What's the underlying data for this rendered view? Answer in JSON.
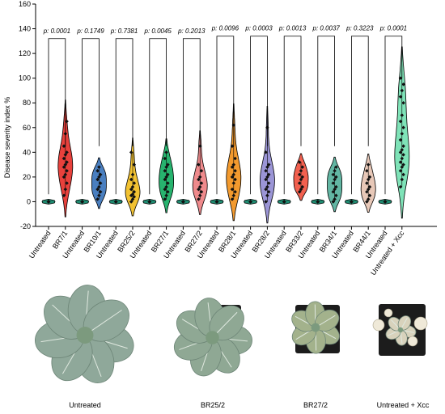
{
  "chart_data": {
    "type": "violin",
    "ylabel": "Disease severity index %",
    "ylim": [
      -20,
      160
    ],
    "yticks": [
      -20,
      0,
      20,
      40,
      60,
      80,
      100,
      120,
      140,
      160
    ],
    "categories": [
      "Untreated",
      "BR7/1",
      "Untreated",
      "BR10/1",
      "Untreated",
      "BR25/2",
      "Untreated",
      "BR27/1",
      "Untreated",
      "BR27/2",
      "Untreated",
      "BR28/1",
      "Untreated",
      "BR28/2",
      "Untreated",
      "BR33/2",
      "Untreated",
      "BR34/1",
      "Untreated",
      "BR44/1",
      "Untreated",
      "Untreated + Xcc"
    ],
    "series": [
      {
        "values": [
          0,
          0,
          0,
          0,
          0,
          0
        ],
        "color": "#1f8a70"
      },
      {
        "values": [
          5,
          10,
          15,
          20,
          22,
          25,
          28,
          30,
          32,
          35,
          38,
          40,
          45,
          55,
          65
        ],
        "color": "#e8413c"
      },
      {
        "values": [
          0,
          0,
          0,
          0,
          0,
          0
        ],
        "color": "#1f8a70"
      },
      {
        "values": [
          2,
          5,
          8,
          10,
          12,
          15,
          18,
          20,
          22,
          25,
          28
        ],
        "color": "#4a7fc0"
      },
      {
        "values": [
          0,
          0,
          0,
          0,
          0,
          0
        ],
        "color": "#1f8a70"
      },
      {
        "values": [
          0,
          2,
          4,
          5,
          6,
          8,
          10,
          12,
          15,
          18,
          22,
          30,
          40
        ],
        "color": "#f2c232"
      },
      {
        "values": [
          0,
          0,
          0,
          0,
          0,
          0
        ],
        "color": "#1f8a70"
      },
      {
        "values": [
          2,
          5,
          8,
          10,
          12,
          15,
          18,
          20,
          22,
          25,
          28,
          30,
          35,
          40
        ],
        "color": "#27b36e"
      },
      {
        "values": [
          0,
          0,
          0,
          0,
          0,
          0
        ],
        "color": "#1f8a70"
      },
      {
        "values": [
          2,
          5,
          8,
          10,
          12,
          15,
          18,
          20,
          25,
          30,
          45
        ],
        "color": "#ef8a8c"
      },
      {
        "values": [
          0,
          0,
          0,
          0,
          0,
          0
        ],
        "color": "#1f8a70"
      },
      {
        "values": [
          2,
          5,
          8,
          10,
          15,
          18,
          20,
          22,
          25,
          28,
          30,
          35,
          45,
          62
        ],
        "color": "#f39a2e"
      },
      {
        "values": [
          0,
          0,
          0,
          0,
          0,
          0
        ],
        "color": "#1f8a70"
      },
      {
        "values": [
          0,
          5,
          8,
          10,
          12,
          15,
          18,
          20,
          22,
          25,
          28,
          30,
          40,
          60
        ],
        "color": "#9b95d6"
      },
      {
        "values": [
          0,
          0,
          0,
          0,
          0,
          0
        ],
        "color": "#1f8a70"
      },
      {
        "values": [
          8,
          10,
          12,
          15,
          18,
          20,
          22,
          25,
          28,
          32
        ],
        "color": "#f2604f"
      },
      {
        "values": [
          0,
          0,
          0,
          0,
          0,
          0
        ],
        "color": "#1f8a70"
      },
      {
        "values": [
          0,
          2,
          5,
          8,
          10,
          12,
          15,
          18,
          20,
          22,
          25,
          28
        ],
        "color": "#62b6a3"
      },
      {
        "values": [
          0,
          0,
          0,
          0,
          0,
          0
        ],
        "color": "#1f8a70"
      },
      {
        "values": [
          0,
          2,
          5,
          8,
          10,
          12,
          15,
          18,
          20,
          25,
          30
        ],
        "color": "#e8c8b8"
      },
      {
        "values": [
          0,
          0,
          0,
          0,
          0,
          0
        ],
        "color": "#1f8a70"
      },
      {
        "values": [
          12,
          18,
          22,
          25,
          28,
          30,
          32,
          35,
          38,
          40,
          42,
          45,
          50,
          55,
          60,
          65,
          70,
          80,
          85,
          90,
          95,
          100
        ],
        "color": "#7fe3b8"
      }
    ],
    "comparisons": [
      {
        "label": "p: 0.0001",
        "y": 132
      },
      {
        "label": "p: 0.1749",
        "y": 132
      },
      {
        "label": "p: 0.7381",
        "y": 132
      },
      {
        "label": "p: 0.0045",
        "y": 132
      },
      {
        "label": "p: 0.2013",
        "y": 132
      },
      {
        "label": "p: 0.0096",
        "y": 134
      },
      {
        "label": "p: 0.0003",
        "y": 134
      },
      {
        "label": "p: 0.0013",
        "y": 134
      },
      {
        "label": "p: 0.0037",
        "y": 134
      },
      {
        "label": "p: 0.3223",
        "y": 134
      },
      {
        "label": "p: 0.0001",
        "y": 134
      }
    ]
  },
  "photos": [
    {
      "caption": "Untreated",
      "leaf_color": "#8fa89a"
    },
    {
      "caption": "BR25/2",
      "leaf_color": "#8fa894"
    },
    {
      "caption": "BR27/2",
      "leaf_color": "#a3b28c"
    },
    {
      "caption": "Untreated + Xcc",
      "leaf_color": "#d8d2bc"
    }
  ]
}
